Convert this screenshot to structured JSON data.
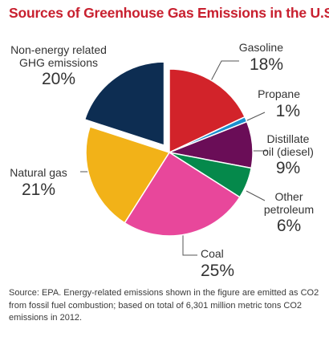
{
  "title": "Sources of Greenhouse Gas Emissions in the U.S.",
  "chart_data": {
    "type": "pie",
    "title": "Sources of Greenhouse Gas Emissions in the U.S.",
    "unit": "%",
    "slices": [
      {
        "name": "Gasoline",
        "value": 18,
        "label": "18%",
        "color": "#d2232a"
      },
      {
        "name": "Propane",
        "value": 1,
        "label": "1%",
        "color": "#1a8fce"
      },
      {
        "name": "Distillate oil (diesel)",
        "name_lines": [
          "Distillate",
          "oil (diesel)"
        ],
        "value": 9,
        "label": "9%",
        "color": "#6a0d57"
      },
      {
        "name": "Other petroleum",
        "name_lines": [
          "Other",
          "petroleum"
        ],
        "value": 6,
        "label": "6%",
        "color": "#05894b"
      },
      {
        "name": "Coal",
        "value": 25,
        "label": "25%",
        "color": "#e8479b"
      },
      {
        "name": "Natural gas",
        "value": 21,
        "label": "21%",
        "color": "#f2b218"
      },
      {
        "name": "Non-energy related GHG emissions",
        "name_lines": [
          "Non-energy related",
          "GHG emissions"
        ],
        "value": 20,
        "label": "20%",
        "color": "#0d2d52",
        "exploded": true
      }
    ]
  },
  "source_note": "Source: EPA. Energy-related emissions shown in the figure are emitted as CO2 from fossil fuel combustion; based on total of 6,301 million metric tons CO2 emissions in 2012."
}
